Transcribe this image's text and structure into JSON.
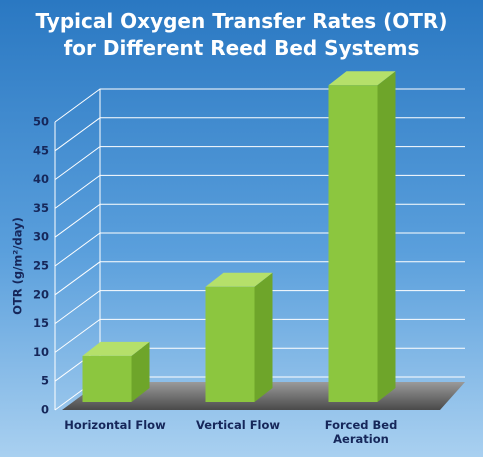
{
  "chart_data": {
    "type": "bar3d",
    "title": "Typical Oxygen Transfer Rates (OTR) for Different Reed Bed Systems",
    "y_label": "OTR (g/m²/day)",
    "categories": [
      "Horizontal Flow",
      "Vertical Flow",
      "Forced Bed Aeration"
    ],
    "values": [
      8,
      20,
      55
    ],
    "color": "#8cc63f",
    "ylim": [
      0,
      50
    ],
    "yticks": [
      0,
      5,
      10,
      15,
      20,
      25,
      30,
      35,
      40,
      45,
      50
    ],
    "grid": true
  }
}
